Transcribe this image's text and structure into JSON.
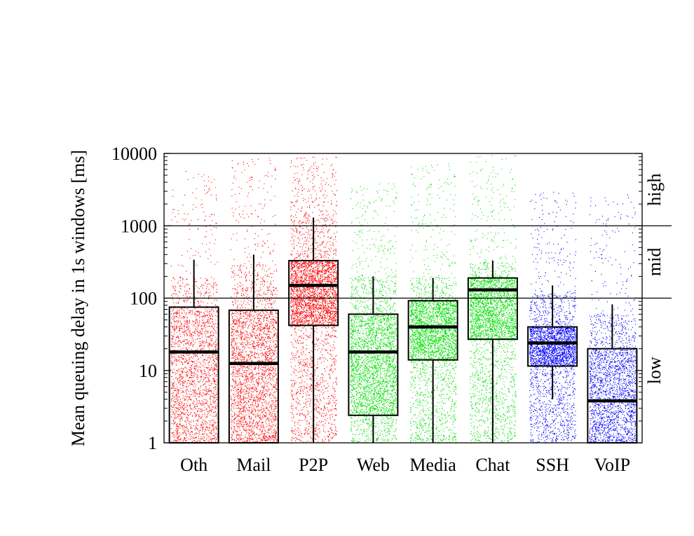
{
  "chart_data": {
    "type": "boxplot",
    "ylabel": "Mean queuing delay in 1s windows [ms]",
    "yscale": "log",
    "ylim": [
      1,
      10000
    ],
    "yticks": [
      {
        "value": 1,
        "label": "1"
      },
      {
        "value": 10,
        "label": "10"
      },
      {
        "value": 100,
        "label": "100"
      },
      {
        "value": 1000,
        "label": "1000"
      },
      {
        "value": 10000,
        "label": "10000"
      }
    ],
    "categories": [
      "Oth",
      "Mail",
      "P2P",
      "Web",
      "Media",
      "Chat",
      "SSH",
      "VoIP"
    ],
    "reference_lines": [
      100,
      1000
    ],
    "region_labels": [
      {
        "label": "high",
        "from": 1000,
        "to": 10000
      },
      {
        "label": "mid",
        "from": 100,
        "to": 1000
      },
      {
        "label": "low",
        "from": 1,
        "to": 100
      }
    ],
    "colors": {
      "red": "#ff0000",
      "green": "#00dd00",
      "blue": "#0000ff"
    },
    "series": [
      {
        "category": "Oth",
        "color": "#ff0000",
        "box": {
          "q1": 1.0,
          "median": 18,
          "q3": 75,
          "whisker_low": 1.0,
          "whisker_high": 340
        },
        "scatter": {
          "dense_max": 200,
          "sparse_max": 6000,
          "count": 2200
        }
      },
      {
        "category": "Mail",
        "color": "#ff0000",
        "box": {
          "q1": 1.0,
          "median": 12.5,
          "q3": 68,
          "whisker_low": 1.0,
          "whisker_high": 400
        },
        "scatter": {
          "dense_max": 300,
          "sparse_max": 9000,
          "count": 2800
        }
      },
      {
        "category": "P2P",
        "color": "#ff0000",
        "box": {
          "q1": 42,
          "median": 150,
          "q3": 330,
          "whisker_low": 1.0,
          "whisker_high": 1300
        },
        "scatter": {
          "dense_max": 1500,
          "sparse_max": 9000,
          "count": 3800
        }
      },
      {
        "category": "Web",
        "color": "#00dd00",
        "box": {
          "q1": 2.4,
          "median": 18,
          "q3": 60,
          "whisker_low": 1.0,
          "whisker_high": 200
        },
        "scatter": {
          "dense_max": 200,
          "sparse_max": 4000,
          "count": 3200
        }
      },
      {
        "category": "Media",
        "color": "#00dd00",
        "box": {
          "q1": 14,
          "median": 40,
          "q3": 92,
          "whisker_low": 1.0,
          "whisker_high": 190
        },
        "scatter": {
          "dense_max": 200,
          "sparse_max": 7500,
          "count": 3200
        }
      },
      {
        "category": "Chat",
        "color": "#00dd00",
        "box": {
          "q1": 27,
          "median": 130,
          "q3": 190,
          "whisker_low": 1.0,
          "whisker_high": 330
        },
        "scatter": {
          "dense_max": 320,
          "sparse_max": 9500,
          "count": 3200
        }
      },
      {
        "category": "SSH",
        "color": "#0000ff",
        "box": {
          "q1": 11.5,
          "median": 24,
          "q3": 40,
          "whisker_low": 4.0,
          "whisker_high": 150
        },
        "scatter": {
          "dense_max": 120,
          "sparse_max": 3000,
          "count": 3000
        }
      },
      {
        "category": "VoIP",
        "color": "#0000ff",
        "box": {
          "q1": 1.0,
          "median": 3.8,
          "q3": 20,
          "whisker_low": 1.0,
          "whisker_high": 82
        },
        "scatter": {
          "dense_max": 60,
          "sparse_max": 2800,
          "count": 2200
        }
      }
    ]
  }
}
